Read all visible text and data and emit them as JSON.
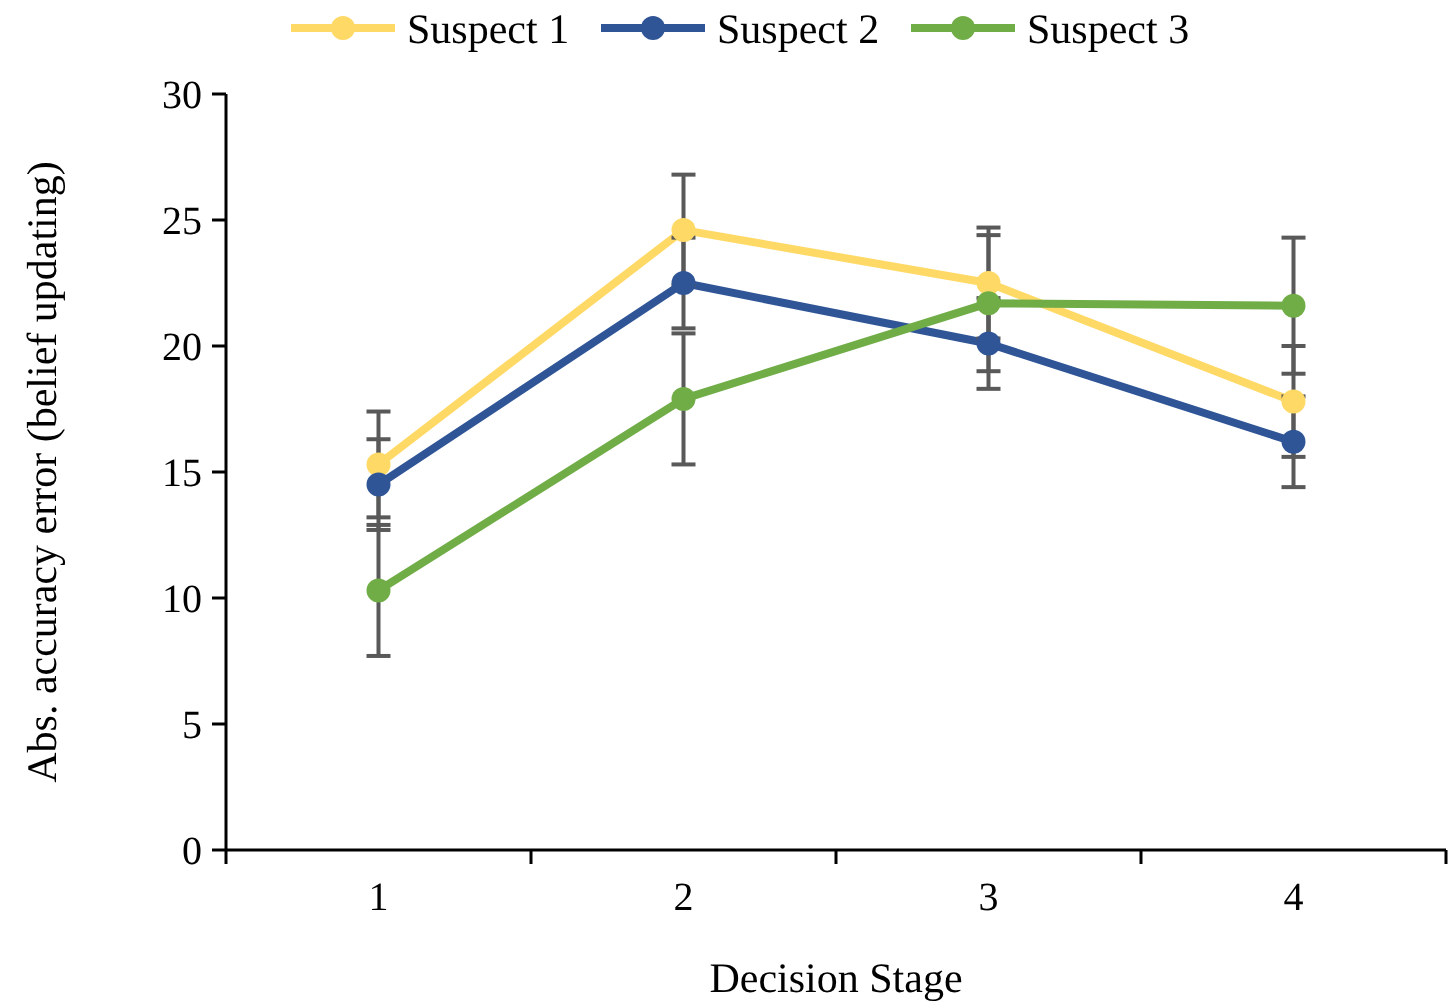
{
  "chart_data": {
    "type": "line",
    "xlabel": "Decision Stage",
    "ylabel": "Abs. accuracy error (belief updating)",
    "categories": [
      "1",
      "2",
      "3",
      "4"
    ],
    "series": [
      {
        "name": "Suspect 1",
        "color": "#ffd966",
        "values": [
          15.3,
          24.6,
          22.5,
          17.8
        ],
        "errors": [
          2.1,
          2.2,
          2.2,
          2.2
        ]
      },
      {
        "name": "Suspect 2",
        "color": "#2f5597",
        "values": [
          14.5,
          22.5,
          20.1,
          16.2
        ],
        "errors": [
          1.8,
          1.8,
          1.8,
          1.8
        ]
      },
      {
        "name": "Suspect 3",
        "color": "#70ad47",
        "values": [
          10.3,
          17.9,
          21.7,
          21.6
        ],
        "errors": [
          2.6,
          2.6,
          2.7,
          2.7
        ]
      }
    ],
    "ylim": [
      0,
      30
    ],
    "yticks": [
      0,
      5,
      10,
      15,
      20,
      25,
      30
    ],
    "grid": false,
    "legend": "top",
    "marker": "circle",
    "line_style": "solid"
  }
}
